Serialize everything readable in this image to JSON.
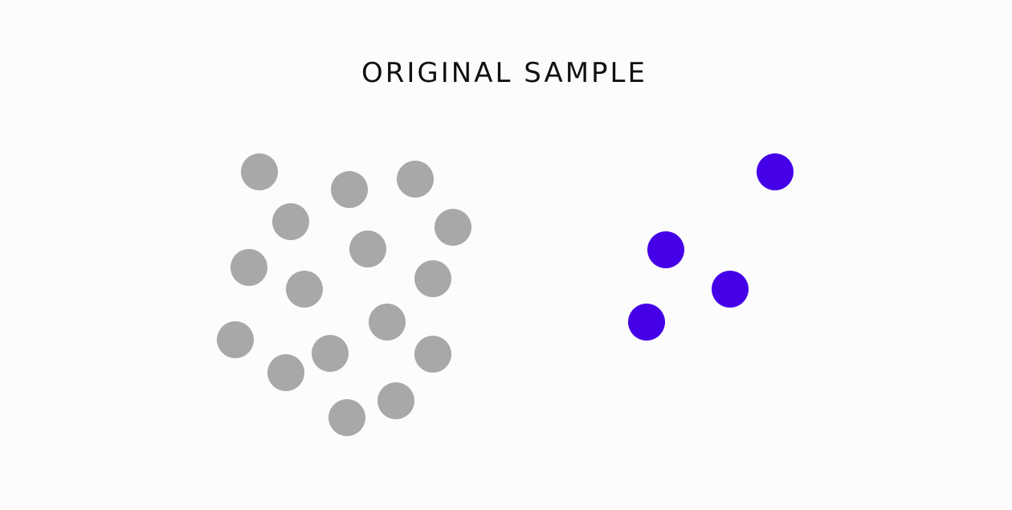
{
  "title": "ORIGINAL SAMPLE"
}
